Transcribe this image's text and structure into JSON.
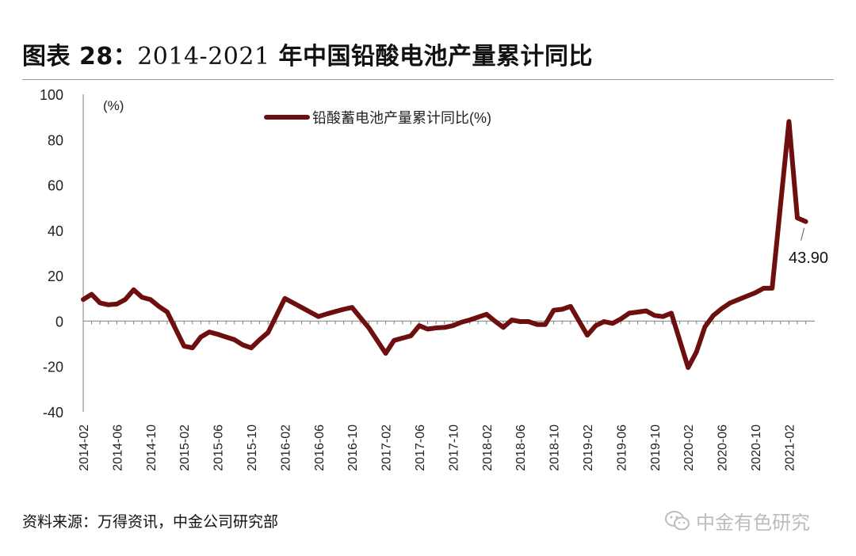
{
  "header": {
    "title_prefix": "图表 28：",
    "title_years": "2014-2021",
    "title_suffix": " 年中国铅酸电池产量累计同比"
  },
  "footer": {
    "source": "资料来源：万得资讯，中金公司研究部",
    "watermark_text": "中金有色研究",
    "watermark_icon": "wechat-icon"
  },
  "colors": {
    "line": "#6e0f0f",
    "axis": "#7f7f7f",
    "text": "#111111"
  },
  "chart_data": {
    "type": "line",
    "title": "",
    "ylabel": "(%)",
    "xlabel": "",
    "ylim": [
      -40,
      100
    ],
    "yticks": [
      "100",
      "80",
      "60",
      "40",
      "20",
      "0",
      "-20",
      "-40"
    ],
    "xtick_labels": [
      "2014-02",
      "2014-06",
      "2014-10",
      "2015-02",
      "2015-06",
      "2015-10",
      "2016-02",
      "2016-06",
      "2016-10",
      "2017-02",
      "2017-06",
      "2017-10",
      "2018-02",
      "2018-06",
      "2018-10",
      "2019-02",
      "2019-06",
      "2019-10",
      "2020-02",
      "2020-06",
      "2020-10",
      "2021-02"
    ],
    "legend_position": "top",
    "annotation": {
      "text": "43.90",
      "x": "2021-04"
    },
    "series": [
      {
        "name": "铅酸蓄电池产量累计同比(%)",
        "x": [
          "2014-02",
          "2014-03",
          "2014-04",
          "2014-05",
          "2014-06",
          "2014-07",
          "2014-08",
          "2014-09",
          "2014-10",
          "2014-11",
          "2014-12",
          "2015-02",
          "2015-03",
          "2015-04",
          "2015-05",
          "2015-06",
          "2015-07",
          "2015-08",
          "2015-09",
          "2015-10",
          "2015-11",
          "2015-12",
          "2016-02",
          "2016-03",
          "2016-04",
          "2016-05",
          "2016-06",
          "2016-07",
          "2016-08",
          "2016-09",
          "2016-10",
          "2016-11",
          "2016-12",
          "2017-02",
          "2017-03",
          "2017-04",
          "2017-05",
          "2017-06",
          "2017-07",
          "2017-08",
          "2017-09",
          "2017-10",
          "2017-11",
          "2017-12",
          "2018-02",
          "2018-03",
          "2018-04",
          "2018-05",
          "2018-06",
          "2018-07",
          "2018-08",
          "2018-09",
          "2018-10",
          "2018-11",
          "2018-12",
          "2019-02",
          "2019-03",
          "2019-04",
          "2019-05",
          "2019-06",
          "2019-07",
          "2019-08",
          "2019-09",
          "2019-10",
          "2019-11",
          "2019-12",
          "2020-02",
          "2020-03",
          "2020-04",
          "2020-05",
          "2020-06",
          "2020-07",
          "2020-08",
          "2020-09",
          "2020-10",
          "2020-11",
          "2020-12",
          "2021-02",
          "2021-03",
          "2021-04"
        ],
        "values": [
          9.5,
          11.8,
          8.0,
          7.2,
          7.5,
          9.5,
          13.8,
          10.5,
          9.5,
          6.5,
          4.0,
          -11.0,
          -11.8,
          -7.0,
          -4.8,
          -5.8,
          -7.0,
          -8.2,
          -10.5,
          -11.8,
          -8.2,
          -5.0,
          10.0,
          8.0,
          6.0,
          4.0,
          2.0,
          3.2,
          4.2,
          5.2,
          6.0,
          1.5,
          -3.0,
          -14.2,
          -8.5,
          -7.5,
          -6.5,
          -2.0,
          -3.5,
          -3.0,
          -2.8,
          -2.0,
          -0.5,
          0.5,
          3.0,
          0.0,
          -2.8,
          0.5,
          -0.2,
          -0.2,
          -1.5,
          -1.5,
          4.8,
          5.2,
          6.5,
          -6.2,
          -2.0,
          -0.2,
          -1.0,
          1.0,
          3.5,
          4.0,
          4.5,
          2.5,
          2.0,
          3.5,
          -20.5,
          -13.5,
          -2.5,
          2.5,
          5.5,
          8.0,
          9.5,
          11.0,
          12.5,
          14.5,
          14.5,
          88.0,
          45.5,
          43.9
        ]
      }
    ]
  }
}
